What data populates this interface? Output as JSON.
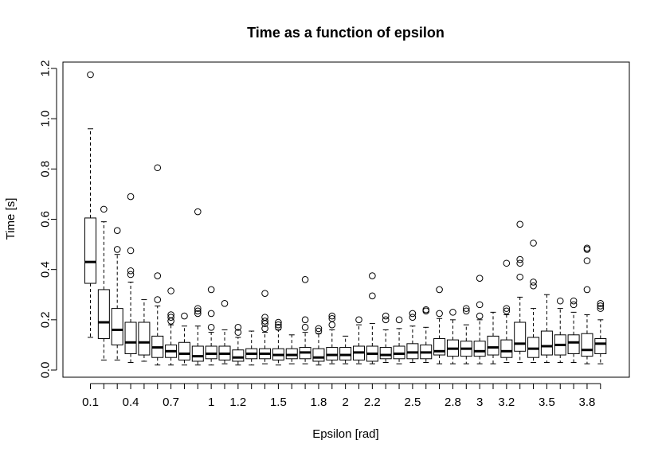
{
  "chart_data": {
    "type": "boxplot",
    "title": "Time as a function of epsilon",
    "xlabel": "Epsilon [rad]",
    "ylabel": "Time [s]",
    "ylim": [
      -0.03,
      1.22
    ],
    "y_ticks": [
      "0.0",
      "0.2",
      "0.4",
      "0.6",
      "0.8",
      "1.0",
      "1.2"
    ],
    "x_tick_labels": [
      {
        "index": 0,
        "label": "0.1"
      },
      {
        "index": 3,
        "label": "0.4"
      },
      {
        "index": 6,
        "label": "0.7"
      },
      {
        "index": 9,
        "label": "1"
      },
      {
        "index": 11,
        "label": "1.2"
      },
      {
        "index": 14,
        "label": "1.5"
      },
      {
        "index": 17,
        "label": "1.8"
      },
      {
        "index": 19,
        "label": "2"
      },
      {
        "index": 21,
        "label": "2.2"
      },
      {
        "index": 24,
        "label": "2.5"
      },
      {
        "index": 27,
        "label": "2.8"
      },
      {
        "index": 29,
        "label": "3"
      },
      {
        "index": 31,
        "label": "3.2"
      },
      {
        "index": 34,
        "label": "3.5"
      },
      {
        "index": 37,
        "label": "3.8"
      }
    ],
    "grid": false,
    "boxes": [
      {
        "x": 0.1,
        "lw": 0.13,
        "q1": 0.345,
        "med": 0.43,
        "q3": 0.605,
        "uw": 0.96,
        "outliers": [
          1.175
        ]
      },
      {
        "x": 0.2,
        "lw": 0.04,
        "q1": 0.125,
        "med": 0.19,
        "q3": 0.32,
        "uw": 0.59,
        "outliers": [
          0.64
        ]
      },
      {
        "x": 0.3,
        "lw": 0.04,
        "q1": 0.1,
        "med": 0.16,
        "q3": 0.245,
        "uw": 0.46,
        "outliers": [
          0.48,
          0.555
        ]
      },
      {
        "x": 0.4,
        "lw": 0.03,
        "q1": 0.065,
        "med": 0.11,
        "q3": 0.19,
        "uw": 0.35,
        "outliers": [
          0.38,
          0.395,
          0.475,
          0.69
        ]
      },
      {
        "x": 0.5,
        "lw": 0.035,
        "q1": 0.06,
        "med": 0.11,
        "q3": 0.19,
        "uw": 0.28,
        "outliers": []
      },
      {
        "x": 0.6,
        "lw": 0.02,
        "q1": 0.05,
        "med": 0.09,
        "q3": 0.135,
        "uw": 0.255,
        "outliers": [
          0.28,
          0.375,
          0.805
        ]
      },
      {
        "x": 0.7,
        "lw": 0.02,
        "q1": 0.05,
        "med": 0.075,
        "q3": 0.1,
        "uw": 0.18,
        "outliers": [
          0.195,
          0.21,
          0.22,
          0.315
        ]
      },
      {
        "x": 0.8,
        "lw": 0.02,
        "q1": 0.04,
        "med": 0.065,
        "q3": 0.11,
        "uw": 0.175,
        "outliers": [
          0.215
        ]
      },
      {
        "x": 0.9,
        "lw": 0.02,
        "q1": 0.035,
        "med": 0.055,
        "q3": 0.095,
        "uw": 0.175,
        "outliers": [
          0.225,
          0.235,
          0.245,
          0.63
        ]
      },
      {
        "x": 1.0,
        "lw": 0.02,
        "q1": 0.045,
        "med": 0.065,
        "q3": 0.095,
        "uw": 0.15,
        "outliers": [
          0.17,
          0.225,
          0.32
        ]
      },
      {
        "x": 1.1,
        "lw": 0.025,
        "q1": 0.04,
        "med": 0.065,
        "q3": 0.095,
        "uw": 0.16,
        "outliers": [
          0.265
        ]
      },
      {
        "x": 1.2,
        "lw": 0.02,
        "q1": 0.035,
        "med": 0.05,
        "q3": 0.08,
        "uw": 0.13,
        "outliers": [
          0.15,
          0.17
        ]
      },
      {
        "x": 1.3,
        "lw": 0.02,
        "q1": 0.045,
        "med": 0.065,
        "q3": 0.085,
        "uw": 0.155,
        "outliers": []
      },
      {
        "x": 1.4,
        "lw": 0.025,
        "q1": 0.045,
        "med": 0.065,
        "q3": 0.085,
        "uw": 0.15,
        "outliers": [
          0.165,
          0.185,
          0.195,
          0.21,
          0.305
        ]
      },
      {
        "x": 1.5,
        "lw": 0.02,
        "q1": 0.04,
        "med": 0.06,
        "q3": 0.085,
        "uw": 0.16,
        "outliers": [
          0.17,
          0.18,
          0.19
        ]
      },
      {
        "x": 1.6,
        "lw": 0.025,
        "q1": 0.045,
        "med": 0.06,
        "q3": 0.085,
        "uw": 0.14,
        "outliers": []
      },
      {
        "x": 1.7,
        "lw": 0.025,
        "q1": 0.045,
        "med": 0.07,
        "q3": 0.09,
        "uw": 0.15,
        "outliers": [
          0.17,
          0.2,
          0.36
        ]
      },
      {
        "x": 1.8,
        "lw": 0.02,
        "q1": 0.035,
        "med": 0.05,
        "q3": 0.085,
        "uw": 0.145,
        "outliers": [
          0.155,
          0.165
        ]
      },
      {
        "x": 1.9,
        "lw": 0.025,
        "q1": 0.04,
        "med": 0.06,
        "q3": 0.09,
        "uw": 0.16,
        "outliers": [
          0.18,
          0.205,
          0.215
        ]
      },
      {
        "x": 2.0,
        "lw": 0.025,
        "q1": 0.04,
        "med": 0.06,
        "q3": 0.09,
        "uw": 0.135,
        "outliers": []
      },
      {
        "x": 2.1,
        "lw": 0.025,
        "q1": 0.04,
        "med": 0.07,
        "q3": 0.095,
        "uw": 0.18,
        "outliers": [
          0.2
        ]
      },
      {
        "x": 2.2,
        "lw": 0.025,
        "q1": 0.035,
        "med": 0.065,
        "q3": 0.095,
        "uw": 0.185,
        "outliers": [
          0.295,
          0.375
        ]
      },
      {
        "x": 2.3,
        "lw": 0.03,
        "q1": 0.045,
        "med": 0.06,
        "q3": 0.09,
        "uw": 0.16,
        "outliers": [
          0.2,
          0.215
        ]
      },
      {
        "x": 2.4,
        "lw": 0.025,
        "q1": 0.045,
        "med": 0.065,
        "q3": 0.095,
        "uw": 0.165,
        "outliers": [
          0.2
        ]
      },
      {
        "x": 2.5,
        "lw": 0.03,
        "q1": 0.045,
        "med": 0.07,
        "q3": 0.105,
        "uw": 0.175,
        "outliers": [
          0.21,
          0.225
        ]
      },
      {
        "x": 2.6,
        "lw": 0.03,
        "q1": 0.045,
        "med": 0.07,
        "q3": 0.1,
        "uw": 0.17,
        "outliers": [
          0.235,
          0.24
        ]
      },
      {
        "x": 2.7,
        "lw": 0.025,
        "q1": 0.06,
        "med": 0.075,
        "q3": 0.125,
        "uw": 0.205,
        "outliers": [
          0.225,
          0.32
        ]
      },
      {
        "x": 2.8,
        "lw": 0.025,
        "q1": 0.055,
        "med": 0.085,
        "q3": 0.12,
        "uw": 0.2,
        "outliers": [
          0.23
        ]
      },
      {
        "x": 2.9,
        "lw": 0.025,
        "q1": 0.055,
        "med": 0.085,
        "q3": 0.115,
        "uw": 0.18,
        "outliers": [
          0.235,
          0.245
        ]
      },
      {
        "x": 3.0,
        "lw": 0.025,
        "q1": 0.055,
        "med": 0.075,
        "q3": 0.115,
        "uw": 0.2,
        "outliers": [
          0.215,
          0.26,
          0.365
        ]
      },
      {
        "x": 3.1,
        "lw": 0.025,
        "q1": 0.06,
        "med": 0.09,
        "q3": 0.135,
        "uw": 0.23,
        "outliers": []
      },
      {
        "x": 3.2,
        "lw": 0.03,
        "q1": 0.05,
        "med": 0.075,
        "q3": 0.12,
        "uw": 0.22,
        "outliers": [
          0.235,
          0.245,
          0.425
        ]
      },
      {
        "x": 3.3,
        "lw": 0.03,
        "q1": 0.075,
        "med": 0.105,
        "q3": 0.19,
        "uw": 0.29,
        "outliers": [
          0.37,
          0.425,
          0.44,
          0.58
        ]
      },
      {
        "x": 3.4,
        "lw": 0.03,
        "q1": 0.05,
        "med": 0.085,
        "q3": 0.13,
        "uw": 0.245,
        "outliers": [
          0.335,
          0.35,
          0.505
        ]
      },
      {
        "x": 3.5,
        "lw": 0.03,
        "q1": 0.06,
        "med": 0.095,
        "q3": 0.155,
        "uw": 0.3,
        "outliers": []
      },
      {
        "x": 3.6,
        "lw": 0.03,
        "q1": 0.06,
        "med": 0.1,
        "q3": 0.14,
        "uw": 0.245,
        "outliers": [
          0.275
        ]
      },
      {
        "x": 3.7,
        "lw": 0.03,
        "q1": 0.065,
        "med": 0.11,
        "q3": 0.14,
        "uw": 0.23,
        "outliers": [
          0.26,
          0.275
        ]
      },
      {
        "x": 3.8,
        "lw": 0.025,
        "q1": 0.055,
        "med": 0.08,
        "q3": 0.145,
        "uw": 0.22,
        "outliers": [
          0.32,
          0.435,
          0.48,
          0.485
        ]
      },
      {
        "x": 3.9,
        "lw": 0.025,
        "q1": 0.065,
        "med": 0.105,
        "q3": 0.125,
        "uw": 0.2,
        "outliers": [
          0.245,
          0.255,
          0.265
        ]
      }
    ]
  }
}
